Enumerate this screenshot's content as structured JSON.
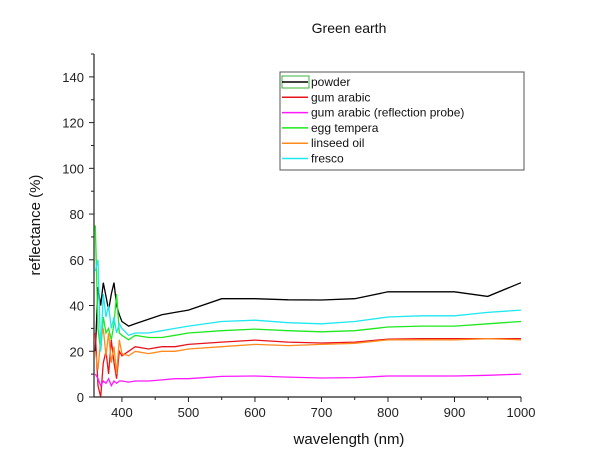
{
  "chart_data": {
    "type": "line",
    "title": "Green earth",
    "xlabel": "wavelength (nm)",
    "ylabel": "reflectance (%)",
    "xlim": [
      358,
      1000
    ],
    "ylim": [
      0,
      150
    ],
    "xticks": [
      400,
      500,
      600,
      700,
      800,
      900,
      1000
    ],
    "yticks": [
      0,
      20,
      40,
      60,
      80,
      100,
      120,
      140
    ],
    "grid": false,
    "legend_position": "top-right",
    "x": [
      360,
      364,
      368,
      372,
      376,
      380,
      384,
      388,
      392,
      396,
      400,
      410,
      420,
      440,
      460,
      480,
      500,
      550,
      600,
      650,
      700,
      750,
      800,
      850,
      900,
      950,
      1000
    ],
    "series": [
      {
        "name": "powder",
        "color": "#000000",
        "values": [
          20,
          48,
          40,
          50,
          44,
          38,
          45,
          50,
          40,
          36,
          33,
          31,
          32,
          34,
          36,
          37,
          38,
          43,
          43,
          42.5,
          42.4,
          43,
          46,
          46,
          46,
          44,
          50
        ]
      },
      {
        "name": "gum arabic",
        "color": "#e8141c",
        "values": [
          28,
          5,
          0,
          15,
          20,
          10,
          25,
          15,
          8,
          20,
          18,
          20,
          22,
          21,
          22,
          22,
          23,
          24,
          24.9,
          24,
          23.6,
          24,
          25.3,
          25.5,
          25.5,
          25.5,
          25.5
        ]
      },
      {
        "name": "gum arabic (reflection probe)",
        "color": "#ff1aff",
        "values": [
          10,
          8,
          5,
          7,
          6,
          8,
          5,
          7,
          6,
          7,
          7,
          6.5,
          7,
          7,
          7.5,
          8,
          8,
          9,
          9.2,
          8.7,
          8.3,
          8.5,
          9.2,
          9.2,
          9.2,
          9.5,
          10
        ]
      },
      {
        "name": "egg tempera",
        "color": "#1ee81e",
        "values": [
          75,
          30,
          20,
          35,
          28,
          30,
          25,
          32,
          45,
          28,
          27,
          25,
          27,
          26,
          26,
          27,
          28,
          29,
          29.7,
          29,
          28.5,
          29,
          30.6,
          31,
          31,
          32,
          33
        ]
      },
      {
        "name": "linseed oil",
        "color": "#ff8a1e",
        "values": [
          20,
          12,
          25,
          30,
          18,
          28,
          15,
          22,
          10,
          25,
          19,
          18,
          20,
          19,
          20,
          20,
          21,
          22,
          23,
          22.5,
          23,
          23.5,
          25,
          25,
          25,
          25.5,
          25
        ]
      },
      {
        "name": "fresco",
        "color": "#1ee8f0",
        "values": [
          55,
          60,
          20,
          45,
          35,
          40,
          30,
          35,
          28,
          32,
          30,
          27,
          28,
          28,
          29,
          30,
          31,
          33,
          33.6,
          32.5,
          32,
          33,
          35,
          35.5,
          35.5,
          37,
          38
        ]
      }
    ],
    "legend_extra_swatch_color": "#3cb43c"
  }
}
